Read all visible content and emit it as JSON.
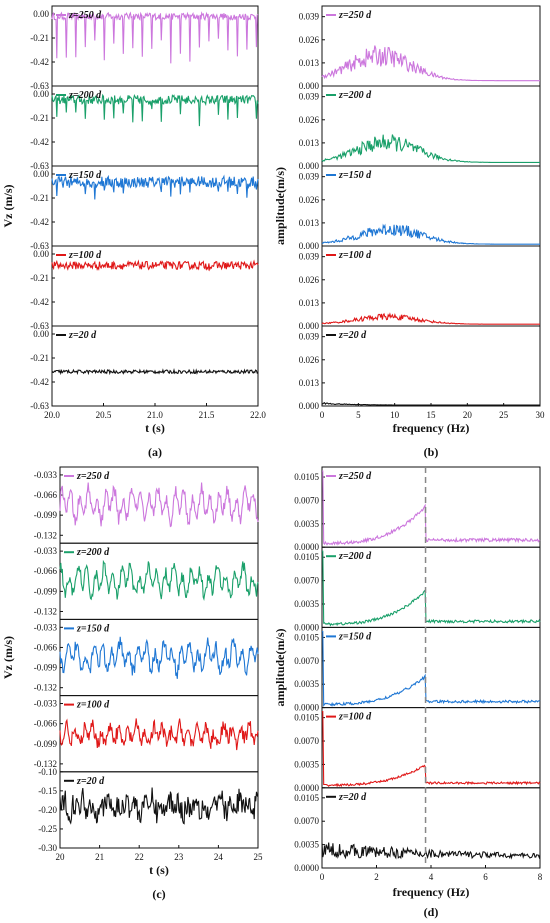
{
  "colors": {
    "z250": "#cc77dd",
    "z200": "#1aa06a",
    "z150": "#1f77d4",
    "z100": "#e01818",
    "z20": "#111111",
    "ref_line": "#888888"
  },
  "chart_data": [
    {
      "type": "line",
      "panel_label": "(a)",
      "xlabel": "t (s)",
      "ylabel": "Vz (m/s)",
      "xlim": [
        20.0,
        22.0
      ],
      "x_ticks": [
        "20.0",
        "20.5",
        "21.0",
        "21.5",
        "22.0"
      ],
      "y_ticks": [
        "0.00",
        "-0.21",
        "-0.42",
        "-0.63"
      ],
      "ylim": [
        -0.63,
        0.07
      ],
      "grid": false,
      "legend_position": "top-left",
      "series": [
        {
          "name": "z=250 d",
          "color_key": "z250",
          "baseline": -0.02,
          "noise": 0.03,
          "spike": 0.4,
          "spike_rate": 0.4
        },
        {
          "name": "z=200 d",
          "color_key": "z200",
          "baseline": -0.05,
          "noise": 0.04,
          "spike": 0.22,
          "spike_rate": 0.45
        },
        {
          "name": "z=150 d",
          "color_key": "z150",
          "baseline": -0.07,
          "noise": 0.05,
          "spike": 0.12,
          "spike_rate": 0.35
        },
        {
          "name": "z=100 d",
          "color_key": "z100",
          "baseline": -0.1,
          "noise": 0.035,
          "spike": 0.0,
          "spike_rate": 0
        },
        {
          "name": "z=20 d",
          "color_key": "z20",
          "baseline": -0.33,
          "noise": 0.015,
          "spike": 0.0,
          "spike_rate": 0
        }
      ]
    },
    {
      "type": "line",
      "panel_label": "(b)",
      "xlabel": "frequency (Hz)",
      "ylabel": "amplitude(m/s)",
      "xlim": [
        0,
        30
      ],
      "x_ticks": [
        "0",
        "5",
        "10",
        "15",
        "20",
        "25",
        "30"
      ],
      "y_ticks": [
        "0.039",
        "0.026",
        "0.013",
        "0.000"
      ],
      "ylim": [
        0,
        0.045
      ],
      "grid": false,
      "legend_position": "top-left",
      "series": [
        {
          "name": "z=250 d",
          "color_key": "z250",
          "peak_hz": 8,
          "peak_amp": 0.02,
          "floor": 0.003
        },
        {
          "name": "z=200 d",
          "color_key": "z200",
          "peak_hz": 9,
          "peak_amp": 0.016,
          "floor": 0.002
        },
        {
          "name": "z=150 d",
          "color_key": "z150",
          "peak_hz": 9.5,
          "peak_amp": 0.012,
          "floor": 0.001
        },
        {
          "name": "z=100 d",
          "color_key": "z100",
          "peak_hz": 9,
          "peak_amp": 0.006,
          "floor": 0.001
        },
        {
          "name": "z=20 d",
          "color_key": "z20",
          "peak_hz": 0,
          "peak_amp": 0.0015,
          "floor": 0.0005
        }
      ]
    },
    {
      "type": "line",
      "panel_label": "(c)",
      "xlabel": "t (s)",
      "ylabel": "Vz (m/s)",
      "xlim": [
        20,
        25
      ],
      "x_ticks": [
        "20",
        "21",
        "22",
        "23",
        "24",
        "25"
      ],
      "grid": false,
      "legend_position": "top-left",
      "series": [
        {
          "name": "z=250 d",
          "color_key": "z250",
          "y_ticks": [
            "-0.033",
            "-0.066",
            "-0.099",
            "-0.132"
          ],
          "ylim": [
            -0.145,
            -0.02
          ],
          "baseline": -0.082,
          "amp": 0.018,
          "noise": 0.01
        },
        {
          "name": "z=200 d",
          "color_key": "z200",
          "y_ticks": [
            "-0.033",
            "-0.066",
            "-0.099",
            "-0.132"
          ],
          "ylim": [
            -0.145,
            -0.02
          ],
          "baseline": -0.082,
          "amp": 0.017,
          "noise": 0.01
        },
        {
          "name": "z=150 d",
          "color_key": "z150",
          "y_ticks": [
            "-0.033",
            "-0.066",
            "-0.099",
            "-0.132"
          ],
          "ylim": [
            -0.145,
            -0.02
          ],
          "baseline": -0.082,
          "amp": 0.016,
          "noise": 0.011
        },
        {
          "name": "z=100 d",
          "color_key": "z100",
          "y_ticks": [
            "-0.033",
            "-0.066",
            "-0.099",
            "-0.132"
          ],
          "ylim": [
            -0.145,
            -0.02
          ],
          "baseline": -0.085,
          "amp": 0.01,
          "noise": 0.012
        },
        {
          "name": "z=20 d",
          "color_key": "z20",
          "y_ticks": [
            "-0.10",
            "-0.15",
            "-0.20",
            "-0.25",
            "-0.30"
          ],
          "ylim": [
            -0.3,
            -0.1
          ],
          "baseline": -0.19,
          "amp": 0.015,
          "noise": 0.03
        }
      ]
    },
    {
      "type": "line",
      "panel_label": "(d)",
      "xlabel": "frequency (Hz)",
      "ylabel": "amplitude(m/s)",
      "xlim": [
        0,
        8
      ],
      "x_ticks": [
        "0",
        "2",
        "4",
        "6",
        "8"
      ],
      "y_ticks": [
        "0.0105",
        "0.0070",
        "0.0035",
        "0.0000"
      ],
      "ylim": [
        0,
        0.012
      ],
      "grid": false,
      "legend_position": "top-left",
      "reference_line_hz": 3.8,
      "series": [
        {
          "name": "z=250 d",
          "color_key": "z250",
          "peak_amp": 0.0055,
          "floor": 0.0006
        },
        {
          "name": "z=200 d",
          "color_key": "z200",
          "peak_amp": 0.005,
          "floor": 0.0005
        },
        {
          "name": "z=150 d",
          "color_key": "z150",
          "peak_amp": 0.0042,
          "floor": 0.0005
        },
        {
          "name": "z=100 d",
          "color_key": "z100",
          "peak_amp": 0.003,
          "floor": 0.0004
        },
        {
          "name": "z=20 d",
          "color_key": "z20",
          "peak_amp": 0.0,
          "floor": 0.0015
        }
      ]
    }
  ]
}
